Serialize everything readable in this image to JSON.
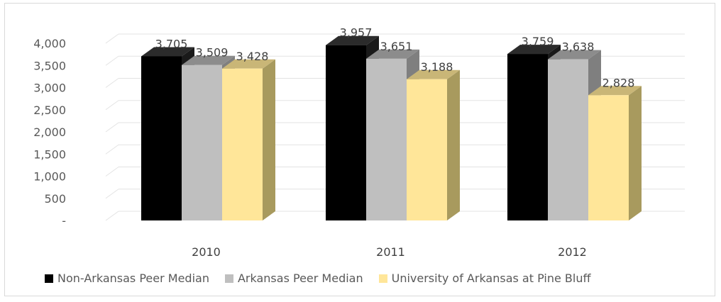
{
  "chart_data": {
    "type": "bar",
    "categories": [
      "2010",
      "2011",
      "2012"
    ],
    "series": [
      {
        "name": "Non-Arkansas Peer Median",
        "values": [
          3705,
          3957,
          3759
        ],
        "labels": [
          "3,705",
          "3,957",
          "3,759"
        ],
        "color": "#000000",
        "side": "#1a1a1a",
        "top": "#2b2b2b"
      },
      {
        "name": "Arkansas Peer Median",
        "values": [
          3509,
          3651,
          3638
        ],
        "labels": [
          "3,509",
          "3,651",
          "3,638"
        ],
        "color": "#bfbfbf",
        "side": "#7f7f7f",
        "top": "#8c8c8c"
      },
      {
        "name": "University of Arkansas at Pine Bluff",
        "values": [
          3428,
          3188,
          2828
        ],
        "labels": [
          "3,428",
          "3,188",
          "2,828"
        ],
        "color": "#ffe699",
        "side": "#a89a5e",
        "top": "#c9b677"
      }
    ],
    "yticks": [
      {
        "value": 0,
        "label": "-"
      },
      {
        "value": 500,
        "label": "500"
      },
      {
        "value": 1000,
        "label": "1,000"
      },
      {
        "value": 1500,
        "label": "1,500"
      },
      {
        "value": 2000,
        "label": "2,000"
      },
      {
        "value": 2500,
        "label": "2,500"
      },
      {
        "value": 3000,
        "label": "3,000"
      },
      {
        "value": 3500,
        "label": "3,500"
      },
      {
        "value": 4000,
        "label": "4,000"
      }
    ],
    "ylim": [
      0,
      4000
    ],
    "grid": true,
    "legend_position": "bottom",
    "style": "3d-clustered-column"
  }
}
